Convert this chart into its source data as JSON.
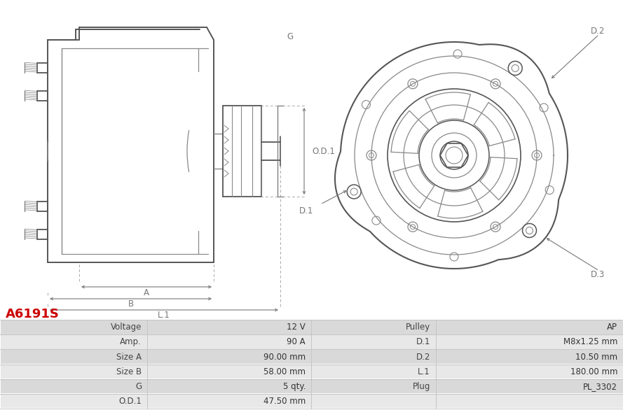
{
  "title": "A6191S",
  "title_color": "#cc0000",
  "bg_color": "#ffffff",
  "table_data": [
    [
      "Voltage",
      "12 V",
      "Pulley",
      "AP"
    ],
    [
      "Amp.",
      "90 A",
      "D.1",
      "M8x1.25 mm"
    ],
    [
      "Size A",
      "90.00 mm",
      "D.2",
      "10.50 mm"
    ],
    [
      "Size B",
      "58.00 mm",
      "L.1",
      "180.00 mm"
    ],
    [
      "G",
      "5 qty.",
      "Plug",
      "PL_3302"
    ],
    [
      "O.D.1",
      "47.50 mm",
      "",
      ""
    ]
  ],
  "line_color": "#555555",
  "dim_color": "#777777",
  "light_color": "#888888",
  "dashed_color": "#aaaaaa"
}
